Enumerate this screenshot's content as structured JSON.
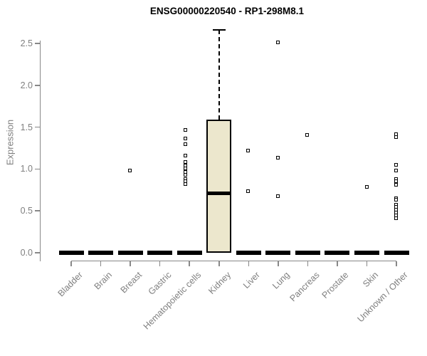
{
  "chart_data": {
    "type": "boxplot",
    "title": "ENSG00000220540 - RP1-298M8.1",
    "ylabel": "Expression",
    "xlabel": "",
    "ytick_labels": [
      "0.0",
      "0.5",
      "1.0",
      "1.5",
      "2.0",
      "2.5"
    ],
    "ytick_values": [
      0,
      0.5,
      1.0,
      1.5,
      2.0,
      2.5
    ],
    "ylim": [
      0,
      2.7
    ],
    "grid": false,
    "legend": false,
    "categories": [
      "Bladder",
      "Brain",
      "Breast",
      "Gastric",
      "Hematopoietic cells",
      "Kidney",
      "Liver",
      "Lung",
      "Pancreas",
      "Prostate",
      "Skin",
      "Unknown / Other"
    ],
    "series": [
      {
        "name": "Bladder",
        "q1": 0,
        "median": 0,
        "q3": 0,
        "whisker_low": 0,
        "whisker_high": 0,
        "jitter_dx": 0,
        "outliers": []
      },
      {
        "name": "Brain",
        "q1": 0,
        "median": 0,
        "q3": 0,
        "whisker_low": 0,
        "whisker_high": 0,
        "jitter_dx": 0,
        "outliers": []
      },
      {
        "name": "Breast",
        "q1": 0,
        "median": 0,
        "q3": 0,
        "whisker_low": 0,
        "whisker_high": 0,
        "jitter_dx": 0,
        "outliers": [
          0.98
        ]
      },
      {
        "name": "Gastric",
        "q1": 0,
        "median": 0,
        "q3": 0,
        "whisker_low": 0,
        "whisker_high": 0,
        "jitter_dx": 0,
        "outliers": []
      },
      {
        "name": "Hematopoietic cells",
        "q1": 0,
        "median": 0,
        "q3": 0,
        "whisker_low": 0,
        "whisker_high": 0,
        "jitter_dx": -5,
        "outliers": [
          1.46,
          1.36,
          1.29,
          1.16,
          1.08,
          1.04,
          1.0,
          0.96,
          0.93,
          0.88,
          0.85,
          0.82
        ]
      },
      {
        "name": "Kidney",
        "q1": 0,
        "median": 0.71,
        "q3": 1.59,
        "whisker_low": 0,
        "whisker_high": 2.66,
        "jitter_dx": 0,
        "outliers": []
      },
      {
        "name": "Liver",
        "q1": 0,
        "median": 0,
        "q3": 0,
        "whisker_low": 0,
        "whisker_high": 0,
        "jitter_dx": 0,
        "outliers": [
          1.22,
          0.73
        ]
      },
      {
        "name": "Lung",
        "q1": 0,
        "median": 0,
        "q3": 0,
        "whisker_low": 0,
        "whisker_high": 0,
        "jitter_dx": 0,
        "outliers": [
          2.51,
          1.13,
          0.67
        ]
      },
      {
        "name": "Pancreas",
        "q1": 0,
        "median": 0,
        "q3": 0,
        "whisker_low": 0,
        "whisker_high": 0,
        "jitter_dx": 0,
        "outliers": [
          1.4
        ]
      },
      {
        "name": "Prostate",
        "q1": 0,
        "median": 0,
        "q3": 0,
        "whisker_low": 0,
        "whisker_high": 0,
        "jitter_dx": 0,
        "outliers": []
      },
      {
        "name": "Skin",
        "q1": 0,
        "median": 0,
        "q3": 0,
        "whisker_low": 0,
        "whisker_high": 0,
        "jitter_dx": 0,
        "outliers": [
          0.78
        ]
      },
      {
        "name": "Unknown / Other",
        "q1": 0,
        "median": 0,
        "q3": 0,
        "whisker_low": 0,
        "whisker_high": 0,
        "jitter_dx": 0,
        "outliers": [
          1.41,
          1.38,
          1.05,
          0.98,
          0.88,
          0.85,
          0.81,
          0.65,
          0.63,
          0.57,
          0.54,
          0.51,
          0.48,
          0.44,
          0.41
        ]
      }
    ],
    "colors": {
      "box_fill": "#ece7cd",
      "box_stroke": "#000000",
      "axis": "#888888",
      "tick_text": "#7f7f7f",
      "title_text": "#000000",
      "outlier_fill": "#ffffff"
    }
  }
}
